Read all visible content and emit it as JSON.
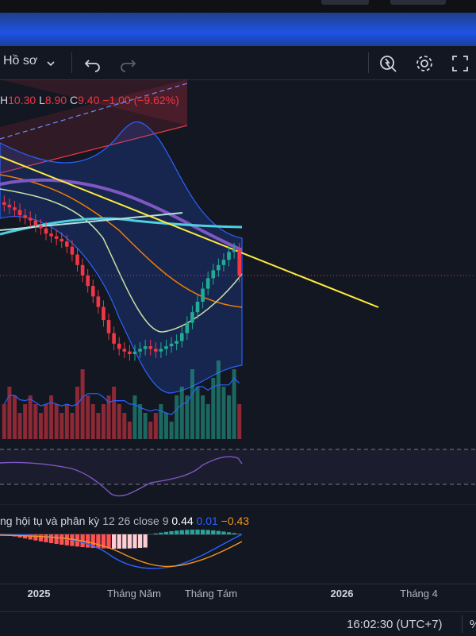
{
  "toolbar": {
    "layout_label": "Hồ sơ",
    "icons": [
      "chevron-down-icon",
      "undo-icon",
      "redo-icon",
      "alert-icon",
      "gear-icon",
      "fullscreen-icon"
    ]
  },
  "ohlc": {
    "h_label": "H",
    "h": "10.30",
    "l_label": "L",
    "l": "8.90",
    "c_label": "C",
    "c": "9.40",
    "change": "−1.00 (−9.62%)"
  },
  "macd": {
    "name": "ng hội tụ và phân kỳ",
    "params": "12 26 close 9",
    "v1": "0.44",
    "v2": "0.01",
    "v3": "−0.43"
  },
  "colors": {
    "up": "#22ab94",
    "down": "#f23645",
    "bb": "#2962ff",
    "trend": "#ffeb3b",
    "ma_fast": "#c5e1a5",
    "ma_mid": "#f57c00",
    "ma_slow": "#7e57c2",
    "ma_long": "#4dd0e1",
    "rsi": "#7e57c2"
  },
  "axis": {
    "ticks": [
      "2025",
      "Tháng Năm",
      "Tháng Tám",
      "2026",
      "Tháng 4"
    ],
    "bold": [
      "2025",
      "2026"
    ]
  },
  "clock": "16:02:30 (UTC+7)",
  "pct_label": "%",
  "chart_data": {
    "type": "candlestick",
    "title": "",
    "last_bar": {
      "open": 10.4,
      "high": 10.3,
      "low": 8.9,
      "close": 9.4,
      "change": -1.0,
      "change_pct": -9.62
    },
    "series": [
      {
        "name": "close",
        "values": [
          12.1,
          12.0,
          11.9,
          11.7,
          11.6,
          11.5,
          11.3,
          11.2,
          11.0,
          10.9,
          10.8,
          10.7,
          10.5,
          10.2,
          9.8,
          9.4,
          9.0,
          8.6,
          8.2,
          7.7,
          7.2,
          6.8,
          6.6,
          6.5,
          6.4,
          6.5,
          6.6,
          6.7,
          6.6,
          6.5,
          6.6,
          6.7,
          6.8,
          6.9,
          7.2,
          7.6,
          8.0,
          8.4,
          8.9,
          9.3,
          9.6,
          9.8,
          10.0,
          10.3,
          10.4,
          9.4
        ]
      },
      {
        "name": "volume",
        "values": [
          4,
          6,
          5,
          3,
          4,
          5,
          4,
          3,
          4,
          5,
          4,
          3,
          4,
          3,
          6,
          8,
          5,
          4,
          3,
          4,
          5,
          6,
          4,
          3,
          2,
          5,
          4,
          3,
          2,
          3,
          4,
          3,
          2,
          5,
          6,
          5,
          8,
          6,
          5,
          4,
          7,
          9,
          6,
          5,
          8,
          4
        ]
      }
    ],
    "indicators": [
      "Bollinger Bands",
      "MA",
      "RSI",
      "MACD 12 26 close 9"
    ]
  }
}
